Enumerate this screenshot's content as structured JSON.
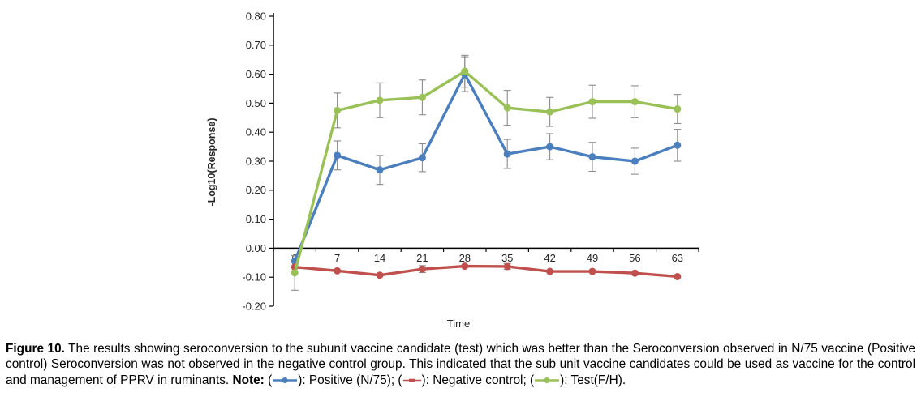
{
  "chart_data": {
    "type": "line",
    "x": [
      "0",
      "7",
      "14",
      "21",
      "28",
      "35",
      "42",
      "49",
      "56",
      "63"
    ],
    "xlabel": "Time",
    "ylabel": "-Log10(Response)",
    "ylim": [
      -0.2,
      0.8
    ],
    "y_ticks": [
      "0.80",
      "0.70",
      "0.60",
      "0.50",
      "0.40",
      "0.30",
      "0.20",
      "0.10",
      "0.00",
      "-0.10",
      "-0.20"
    ],
    "grid": false,
    "legend_position": "in-caption",
    "error_bar_color": "#8c8c8c",
    "axis_color": "#000000",
    "series": [
      {
        "name": "Positive (N/75)",
        "color": "#4a7ebd",
        "marker": "circle",
        "values": [
          -0.045,
          0.32,
          0.27,
          0.312,
          0.6,
          0.325,
          0.35,
          0.315,
          0.3,
          0.355
        ],
        "errors": [
          0,
          0.05,
          0.05,
          0.048,
          0.06,
          0.05,
          0.045,
          0.05,
          0.045,
          0.055
        ]
      },
      {
        "name": "Negative control",
        "color": "#c0504d",
        "marker": "circle",
        "values": [
          -0.065,
          -0.078,
          -0.093,
          -0.072,
          -0.062,
          -0.063,
          -0.08,
          -0.08,
          -0.086,
          -0.098
        ],
        "errors": [
          0,
          0,
          0,
          0.012,
          0,
          0.01,
          0,
          0,
          0,
          0
        ]
      },
      {
        "name": "Test(F/H)",
        "color": "#9ac158",
        "marker": "circle",
        "values": [
          -0.085,
          0.475,
          0.51,
          0.52,
          0.61,
          0.484,
          0.47,
          0.505,
          0.505,
          0.48
        ],
        "errors": [
          0.06,
          0.06,
          0.06,
          0.06,
          0.055,
          0.06,
          0.05,
          0.057,
          0.055,
          0.05
        ]
      }
    ]
  },
  "caption": {
    "figure_label": "Figure 10.",
    "body": "The results showing seroconversion to the subunit vaccine candidate (test) which was better than the Seroconversion observed in N/75 vaccine (Positive control) Seroconversion was not observed in the negative control group. This indicated that the sub unit vaccine candidates could be used as vaccine for the control and management of PPRV in ruminants.",
    "note_label": "Note:",
    "punct": {
      "open": "(",
      "close": "): ",
      "sep": "; ",
      "end": "."
    },
    "legend_entries": [
      {
        "label": "Positive (N/75)",
        "color": "#4a7ebd",
        "marker": "circle",
        "icon_name": "positive-series-swatch-icon"
      },
      {
        "label": "Negative control",
        "color": "#c0504d",
        "marker": "dash",
        "icon_name": "negative-series-swatch-icon"
      },
      {
        "label": "Test(F/H)",
        "color": "#9ac158",
        "marker": "circle",
        "icon_name": "test-series-swatch-icon"
      }
    ]
  }
}
